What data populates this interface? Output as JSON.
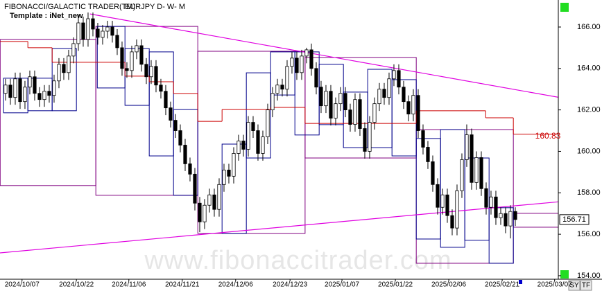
{
  "chart_data": {
    "type": "candlestick",
    "title": "FIBONACCI/GALACTIC TRADER(TM)",
    "symbol": "EURJPY D- W- M",
    "template": "Template : iNet_new",
    "watermark": "www.fibonaccitrader.com",
    "buttons": [
      "SY",
      "TF"
    ],
    "open": [
      162.8,
      163.2,
      162.6,
      163.5,
      162.4,
      163.1,
      163.6,
      162.8,
      162.5,
      162.9,
      162.7,
      163.4,
      164.2,
      163.8,
      164.6,
      165.2,
      166.2,
      165.4,
      166.4,
      165.9,
      165.5,
      165.8,
      166.0,
      165.6,
      165.0,
      164.0,
      163.9,
      164.8,
      165.1,
      164.2,
      163.6,
      164.1,
      163.2,
      162.9,
      162.1,
      161.5,
      161.0,
      160.3,
      159.4,
      158.9,
      157.5,
      156.6,
      157.4,
      157.9,
      157.2,
      158.4,
      159.1,
      158.8,
      159.9,
      160.5,
      160.1,
      161.4,
      161.0,
      159.9,
      160.7,
      162.0,
      162.8,
      163.2,
      163.0,
      164.1,
      164.5,
      163.8,
      164.6,
      164.9,
      164.0,
      163.1,
      162.2,
      162.9,
      161.6,
      162.3,
      162.8,
      162.0,
      161.3,
      162.5,
      161.1,
      160.0,
      161.4,
      162.3,
      163.0,
      162.6,
      163.5,
      163.9,
      163.1,
      162.4,
      161.8,
      162.7,
      161.0,
      160.2,
      159.5,
      158.4,
      157.3,
      157.9,
      156.9,
      156.3,
      158.1,
      159.6,
      160.8,
      158.5,
      159.7,
      158.2,
      157.3,
      157.8,
      156.8,
      157.0,
      156.4,
      157.1
    ],
    "high": [
      163.5,
      163.5,
      163.8,
      163.8,
      163.4,
      163.9,
      163.9,
      163.1,
      163.2,
      163.2,
      163.7,
      164.5,
      164.5,
      164.9,
      165.5,
      166.6,
      166.5,
      166.7,
      166.7,
      166.2,
      166.1,
      166.3,
      166.3,
      165.9,
      165.3,
      164.3,
      165.1,
      165.4,
      165.4,
      164.5,
      164.4,
      164.4,
      163.5,
      163.2,
      162.4,
      161.8,
      161.3,
      160.6,
      159.7,
      159.2,
      157.8,
      157.7,
      158.2,
      158.2,
      158.7,
      159.4,
      159.4,
      160.2,
      160.8,
      160.8,
      161.7,
      161.7,
      161.3,
      161.0,
      162.3,
      163.1,
      163.5,
      163.5,
      164.4,
      164.8,
      164.8,
      164.9,
      165.0,
      165.2,
      164.3,
      163.4,
      163.2,
      163.2,
      162.6,
      163.1,
      163.1,
      162.3,
      162.8,
      162.8,
      161.4,
      161.7,
      162.6,
      163.3,
      163.3,
      163.8,
      164.2,
      164.2,
      163.4,
      162.7,
      163.0,
      163.0,
      161.3,
      160.5,
      159.8,
      158.7,
      158.2,
      158.2,
      157.2,
      158.4,
      159.9,
      161.3,
      161.1,
      160.0,
      160.0,
      158.5,
      158.1,
      158.1,
      157.3,
      157.3,
      157.4,
      157.3
    ],
    "low": [
      162.45,
      162.25,
      162.25,
      162.05,
      162.05,
      162.75,
      162.45,
      162.15,
      162.15,
      162.35,
      162.35,
      163.05,
      163.45,
      163.45,
      164.25,
      164.85,
      165.05,
      165.05,
      165.55,
      165.15,
      165.15,
      165.45,
      165.25,
      164.65,
      163.65,
      163.55,
      163.55,
      164.45,
      163.85,
      163.25,
      163.25,
      162.85,
      162.55,
      161.75,
      161.15,
      160.65,
      159.95,
      159.05,
      158.55,
      157.15,
      156.1,
      156.25,
      157.05,
      156.85,
      156.85,
      158.05,
      158.45,
      158.45,
      159.55,
      159.75,
      159.75,
      160.65,
      159.55,
      159.55,
      160.35,
      161.65,
      162.45,
      162.65,
      162.65,
      163.75,
      163.45,
      163.45,
      164.25,
      163.65,
      162.75,
      161.85,
      161.85,
      161.25,
      161.25,
      161.95,
      161.65,
      160.95,
      160.95,
      160.75,
      159.65,
      159.65,
      161.05,
      161.95,
      162.25,
      162.25,
      163.15,
      162.75,
      162.05,
      161.45,
      161.45,
      160.65,
      159.85,
      159.15,
      158.05,
      156.95,
      156.95,
      156.55,
      155.95,
      155.95,
      157.75,
      159.25,
      158.15,
      158.15,
      157.85,
      156.95,
      156.95,
      156.45,
      156.45,
      156.05,
      155.8,
      156.4
    ],
    "close": [
      163.2,
      162.6,
      163.5,
      162.4,
      163.1,
      163.6,
      162.8,
      162.5,
      162.9,
      162.7,
      163.4,
      164.2,
      163.8,
      164.6,
      165.2,
      166.2,
      165.4,
      166.4,
      165.9,
      165.5,
      165.8,
      166.0,
      165.6,
      165.0,
      164.0,
      163.9,
      164.8,
      165.1,
      164.2,
      163.6,
      164.1,
      163.2,
      162.9,
      162.1,
      161.5,
      161.0,
      160.3,
      159.4,
      158.9,
      157.5,
      156.6,
      157.4,
      157.9,
      157.2,
      158.4,
      159.1,
      158.8,
      159.9,
      160.5,
      160.1,
      161.4,
      161.0,
      159.9,
      160.7,
      162.0,
      162.8,
      163.2,
      163.0,
      164.1,
      164.5,
      163.8,
      164.6,
      164.9,
      164.0,
      163.1,
      162.2,
      162.9,
      161.6,
      162.3,
      162.8,
      162.0,
      161.3,
      162.5,
      161.1,
      160.0,
      161.4,
      162.3,
      163.0,
      162.6,
      163.5,
      163.9,
      163.1,
      162.4,
      161.8,
      162.7,
      161.0,
      160.2,
      159.5,
      158.4,
      157.3,
      157.9,
      156.9,
      156.3,
      158.1,
      159.6,
      160.8,
      158.5,
      159.7,
      158.2,
      157.3,
      157.8,
      156.8,
      157.0,
      156.4,
      157.1,
      156.71
    ],
    "up_color": "#ffffff",
    "down_color": "#000000",
    "xlim": [
      -1.14,
      113.86
    ],
    "xticks": [
      {
        "value": 3.4,
        "label": "2024/10/07"
      },
      {
        "value": 14.6,
        "label": "2024/10/22"
      },
      {
        "value": 25.4,
        "label": "2024/11/06"
      },
      {
        "value": 36.4,
        "label": "2024/11/21"
      },
      {
        "value": 47.4,
        "label": "2024/12/06"
      },
      {
        "value": 58.6,
        "label": "2024/12/23"
      },
      {
        "value": 69.3,
        "label": "2025/01/07"
      },
      {
        "value": 80.3,
        "label": "2025/01/22"
      },
      {
        "value": 91.3,
        "label": "2025/02/06"
      },
      {
        "value": 102.3,
        "label": "2025/02/21"
      },
      {
        "value": 113.1,
        "label": "2025/03/07"
      }
    ],
    "ylim": [
      153.83,
      167.17
    ],
    "yticks": [
      {
        "value": 154,
        "label": "154.00"
      },
      {
        "value": 156,
        "label": "156.00"
      },
      {
        "value": 158,
        "label": "158.00"
      },
      {
        "value": 160,
        "label": "160.00"
      },
      {
        "value": 162,
        "label": "162.00"
      },
      {
        "value": 164,
        "label": "164.00"
      },
      {
        "value": 166,
        "label": "166.00"
      }
    ],
    "step_line": {
      "color": "#cc0000",
      "x": [
        -1.14,
        4.6,
        9.6,
        24.6,
        29.6,
        34.6,
        39.6,
        44.6,
        54.6,
        61.7,
        84.6,
        98.9,
        104.6
      ],
      "values": [
        165.3,
        165.0,
        164.3,
        163.63,
        163.36,
        162.79,
        161.45,
        162.02,
        162.12,
        161.35,
        161.96,
        161.62,
        160.83
      ]
    },
    "trendlines": [
      {
        "x": [
          17.4,
          116
        ],
        "y": [
          166.63,
          162.52
        ],
        "color": "#e000e0"
      },
      {
        "x": [
          -1.14,
          116
        ],
        "y": [
          155.1,
          157.61
        ],
        "color": "#e000e0"
      }
    ],
    "boxes": [
      {
        "x": [
          -1.1,
          18.6
        ],
        "y": [
          158.35,
          165.4
        ],
        "color": "#800080"
      },
      {
        "x": [
          18.6,
          39.6
        ],
        "y": [
          157.88,
          166.03
        ],
        "color": "#800080"
      },
      {
        "x": [
          39.6,
          61.7
        ],
        "y": [
          156.04,
          164.83
        ],
        "color": "#800080"
      },
      {
        "x": [
          61.7,
          84.6
        ],
        "y": [
          159.68,
          164.53
        ],
        "color": "#800080"
      },
      {
        "x": [
          84.6,
          104.6
        ],
        "y": [
          154.6,
          161.05
        ],
        "color": "#800080"
      },
      {
        "x": [
          104.6,
          116
        ],
        "y": [
          156.34,
          157.01
        ],
        "color": "#800080"
      },
      {
        "x": [
          -0.4,
          4.6
        ],
        "y": [
          161.86,
          163.53
        ],
        "color": "#00008b"
      },
      {
        "x": [
          4.6,
          9.6
        ],
        "y": [
          161.96,
          163.53
        ],
        "color": "#00008b"
      },
      {
        "x": [
          9.6,
          14.6
        ],
        "y": [
          161.96,
          164.96
        ],
        "color": "#00008b"
      },
      {
        "x": [
          18.9,
          24.6
        ],
        "y": [
          163.06,
          166.03
        ],
        "color": "#00008b"
      },
      {
        "x": [
          24.6,
          29.6
        ],
        "y": [
          162.22,
          164.96
        ],
        "color": "#00008b"
      },
      {
        "x": [
          29.6,
          34.6
        ],
        "y": [
          159.78,
          164.8
        ],
        "color": "#00008b"
      },
      {
        "x": [
          34.6,
          39.6
        ],
        "y": [
          157.88,
          162.02
        ],
        "color": "#00008b"
      },
      {
        "x": [
          44.6,
          49.6
        ],
        "y": [
          156.04,
          160.35
        ],
        "color": "#00008b"
      },
      {
        "x": [
          49.6,
          54.6
        ],
        "y": [
          159.68,
          163.79
        ],
        "color": "#00008b"
      },
      {
        "x": [
          54.6,
          59.6
        ],
        "y": [
          162.72,
          164.8
        ],
        "color": "#00008b"
      },
      {
        "x": [
          59.6,
          64.6
        ],
        "y": [
          160.79,
          164.8
        ],
        "color": "#00008b"
      },
      {
        "x": [
          64.6,
          69.6
        ],
        "y": [
          161.29,
          164.2
        ],
        "color": "#00008b"
      },
      {
        "x": [
          69.6,
          74.6
        ],
        "y": [
          160.18,
          162.86
        ],
        "color": "#00008b"
      },
      {
        "x": [
          74.6,
          79.6
        ],
        "y": [
          160.18,
          163.96
        ],
        "color": "#00008b"
      },
      {
        "x": [
          79.6,
          84.6
        ],
        "y": [
          159.78,
          163.46
        ],
        "color": "#00008b"
      },
      {
        "x": [
          84.6,
          89.6
        ],
        "y": [
          155.77,
          160.62
        ],
        "color": "#00008b"
      },
      {
        "x": [
          89.6,
          94.6
        ],
        "y": [
          155.37,
          161.05
        ],
        "color": "#00008b"
      },
      {
        "x": [
          94.6,
          99.6
        ],
        "y": [
          155.71,
          159.68
        ],
        "color": "#00008b"
      },
      {
        "x": [
          99.6,
          104.6
        ],
        "y": [
          154.6,
          157.28
        ],
        "color": "#00008b"
      }
    ]
  }
}
